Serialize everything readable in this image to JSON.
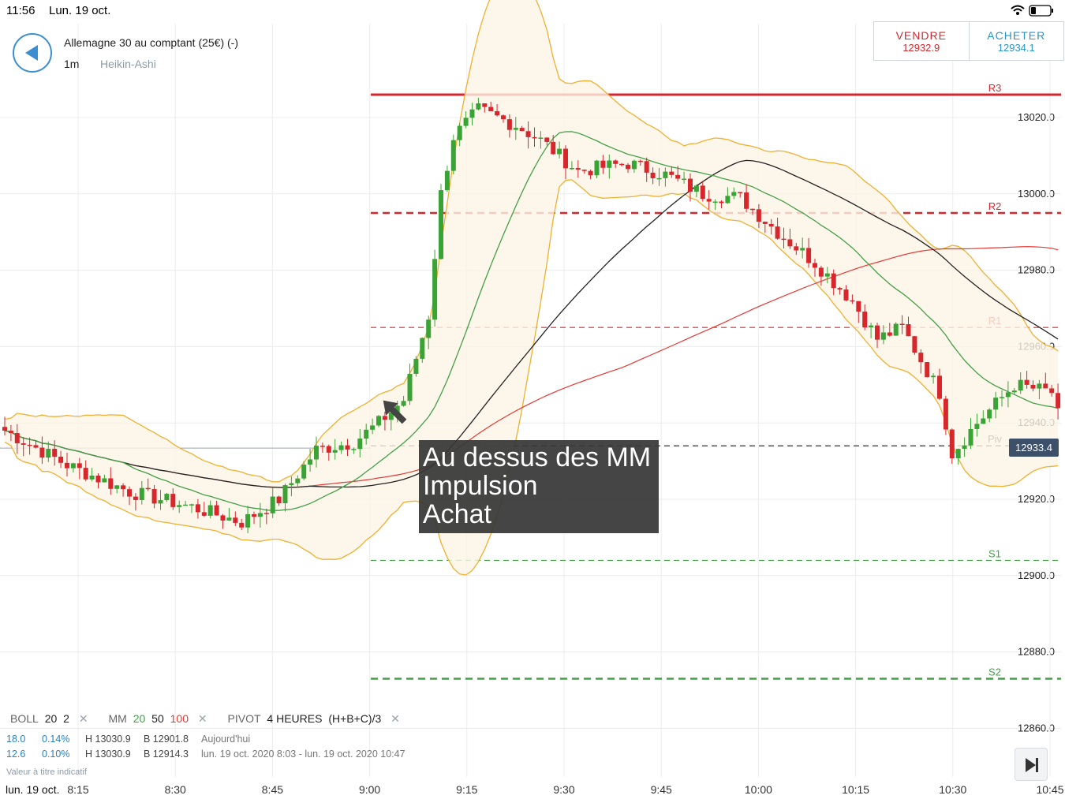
{
  "status_bar": {
    "time": "11:56",
    "date": "Lun. 19 oct."
  },
  "header": {
    "instrument": "Allemagne 30 au comptant (25€) (-)",
    "timeframe": "1m",
    "chart_type": "Heikin-Ashi",
    "back_icon": "back-arrow-icon"
  },
  "trade": {
    "sell_label": "VENDRE",
    "sell_price": "12932.9",
    "buy_label": "ACHETER",
    "buy_price": "12934.1",
    "sell_color": "#d8262d",
    "buy_color": "#2a95c8"
  },
  "annotation": {
    "lines": [
      "Au dessus des MM",
      "Impulsion",
      "Achat"
    ]
  },
  "price_tag": "12933.4",
  "chart_data": {
    "type": "candlestick",
    "y_labels": [
      "13020.0",
      "13000.0",
      "12980.0",
      "12960.0",
      "12940.0",
      "12920.0",
      "12900.0",
      "12880.0",
      "12860.0"
    ],
    "y_values": [
      13020,
      13000,
      12980,
      12960,
      12940,
      12920,
      12900,
      12880,
      12860
    ],
    "x_labels": [
      "8:15",
      "8:30",
      "8:45",
      "9:00",
      "9:15",
      "9:30",
      "9:45",
      "10:00",
      "10:15",
      "10:30",
      "10:45"
    ],
    "x_date_label": "lun. 19 oct.",
    "pivot_levels": [
      {
        "label": "R3",
        "value": 13026,
        "color": "#d8262d",
        "style": "solid"
      },
      {
        "label": "R2",
        "value": 12995,
        "color": "#d8262d",
        "style": "dashed"
      },
      {
        "label": "R1",
        "value": 12965,
        "color": "#d8262d",
        "style": "dashed-thin"
      },
      {
        "label": "Piv",
        "value": 12934,
        "color": "#333333",
        "style": "dashed-thin"
      },
      {
        "label": "S1",
        "value": 12904,
        "color": "#43a047",
        "style": "dashed-thin"
      },
      {
        "label": "S2",
        "value": 12873,
        "color": "#43a047",
        "style": "dashed"
      }
    ],
    "ma_colors": {
      "ma20": "#43a047",
      "ma50": "#222222",
      "ma100": "#e53935",
      "bollinger": "#f0b030"
    },
    "up_color": "#3aa335",
    "down_color": "#d8262d",
    "arrow_icon": "pointer-arrow-icon"
  },
  "indicators": {
    "boll": {
      "name": "BOLL",
      "p1": "20",
      "p2": "2"
    },
    "mm": {
      "name": "MM",
      "p1": "20",
      "p2": "50",
      "p3": "100"
    },
    "pivot": {
      "name": "PIVOT",
      "p1": "4 HEURES",
      "p2": "(H+B+C)/3"
    }
  },
  "stats": {
    "row1": {
      "a": "18.0",
      "b": "0.14%",
      "h": "H 13030.9",
      "l": "B 12901.8",
      "range": "Aujourd'hui"
    },
    "row2": {
      "a": "12.6",
      "b": "0.10%",
      "h": "H 13030.9",
      "l": "B 12914.3",
      "range": "lun. 19 oct. 2020 8:03 - lun. 19 oct. 2020 10:47"
    }
  },
  "disclaimer": "Valeur à titre indicatif"
}
